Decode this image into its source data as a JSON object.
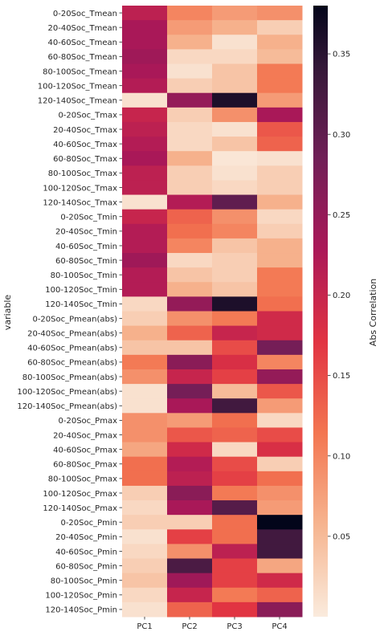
{
  "chart_data": {
    "type": "heatmap",
    "title": "",
    "xlabel": "",
    "ylabel": "variable",
    "colorbar_label": "Abs Correlation",
    "columns": [
      "PC1",
      "PC2",
      "PC3",
      "PC4"
    ],
    "rows": [
      "0-20Soc_Tmean",
      "20-40Soc_Tmean",
      "40-60Soc_Tmean",
      "60-80Soc_Tmean",
      "80-100Soc_Tmean",
      "100-120Soc_Tmean",
      "120-140Soc_Tmean",
      "0-20Soc_Tmax",
      "20-40Soc_Tmax",
      "40-60Soc_Tmax",
      "60-80Soc_Tmax",
      "80-100Soc_Tmax",
      "100-120Soc_Tmax",
      "120-140Soc_Tmax",
      "0-20Soc_Tmin",
      "20-40Soc_Tmin",
      "40-60Soc_Tmin",
      "60-80Soc_Tmin",
      "80-100Soc_Tmin",
      "100-120Soc_Tmin",
      "120-140Soc_Tmin",
      "0-20Soc_Pmean(abs)",
      "20-40Soc_Pmean(abs)",
      "40-60Soc_Pmean(abs)",
      "60-80Soc_Pmean(abs)",
      "80-100Soc_Pmean(abs)",
      "100-120Soc_Pmean(abs)",
      "120-140Soc_Pmean(abs)",
      "0-20Soc_Pmax",
      "20-40Soc_Pmax",
      "40-60Soc_Pmax",
      "60-80Soc_Pmax",
      "80-100Soc_Pmax",
      "100-120Soc_Pmax",
      "120-140Soc_Pmax",
      "0-20Soc_Pmin",
      "20-40Soc_Pmin",
      "40-60Soc_Pmin",
      "60-80Soc_Pmin",
      "80-100Soc_Pmin",
      "100-120Soc_Pmin",
      "120-140Soc_Pmin"
    ],
    "values": [
      [
        0.21,
        0.1,
        0.08,
        0.09
      ],
      [
        0.23,
        0.08,
        0.06,
        0.03
      ],
      [
        0.23,
        0.06,
        0.01,
        0.06
      ],
      [
        0.24,
        0.02,
        0.02,
        0.05
      ],
      [
        0.23,
        0.01,
        0.04,
        0.11
      ],
      [
        0.22,
        0.03,
        0.04,
        0.11
      ],
      [
        0.01,
        0.25,
        0.36,
        0.08
      ],
      [
        0.2,
        0.03,
        0.09,
        0.23
      ],
      [
        0.21,
        0.02,
        0.01,
        0.14
      ],
      [
        0.22,
        0.02,
        0.04,
        0.13
      ],
      [
        0.23,
        0.06,
        0.005,
        0.01
      ],
      [
        0.21,
        0.03,
        0.01,
        0.03
      ],
      [
        0.21,
        0.03,
        0.02,
        0.03
      ],
      [
        0.01,
        0.22,
        0.3,
        0.06
      ],
      [
        0.2,
        0.13,
        0.09,
        0.02
      ],
      [
        0.22,
        0.12,
        0.1,
        0.03
      ],
      [
        0.22,
        0.1,
        0.04,
        0.06
      ],
      [
        0.24,
        0.02,
        0.03,
        0.06
      ],
      [
        0.22,
        0.04,
        0.03,
        0.11
      ],
      [
        0.22,
        0.06,
        0.04,
        0.11
      ],
      [
        0.02,
        0.25,
        0.36,
        0.12
      ],
      [
        0.03,
        0.09,
        0.11,
        0.19
      ],
      [
        0.06,
        0.13,
        0.2,
        0.19
      ],
      [
        0.04,
        0.04,
        0.15,
        0.28
      ],
      [
        0.11,
        0.26,
        0.18,
        0.1
      ],
      [
        0.09,
        0.2,
        0.16,
        0.25
      ],
      [
        0.01,
        0.28,
        0.05,
        0.14
      ],
      [
        0.01,
        0.23,
        0.33,
        0.08
      ],
      [
        0.09,
        0.08,
        0.12,
        0.02
      ],
      [
        0.09,
        0.14,
        0.13,
        0.15
      ],
      [
        0.07,
        0.19,
        0.02,
        0.18
      ],
      [
        0.12,
        0.22,
        0.15,
        0.03
      ],
      [
        0.12,
        0.21,
        0.16,
        0.12
      ],
      [
        0.03,
        0.26,
        0.11,
        0.09
      ],
      [
        0.02,
        0.23,
        0.31,
        0.08
      ],
      [
        0.03,
        0.03,
        0.12,
        0.38
      ],
      [
        0.01,
        0.16,
        0.12,
        0.33
      ],
      [
        0.02,
        0.09,
        0.21,
        0.33
      ],
      [
        0.03,
        0.32,
        0.16,
        0.07
      ],
      [
        0.04,
        0.24,
        0.16,
        0.19
      ],
      [
        0.02,
        0.2,
        0.11,
        0.13
      ],
      [
        0.01,
        0.13,
        0.17,
        0.26
      ]
    ],
    "colorbar": {
      "colormap": "rocket_r",
      "range": [
        0.0,
        0.38
      ],
      "ticks": [
        0.05,
        0.1,
        0.15,
        0.2,
        0.25,
        0.3,
        0.35
      ],
      "tick_labels": [
        "0.05",
        "0.10",
        "0.15",
        "0.20",
        "0.25",
        "0.30",
        "0.35"
      ]
    },
    "grid": false,
    "legend": "colorbar-right"
  }
}
